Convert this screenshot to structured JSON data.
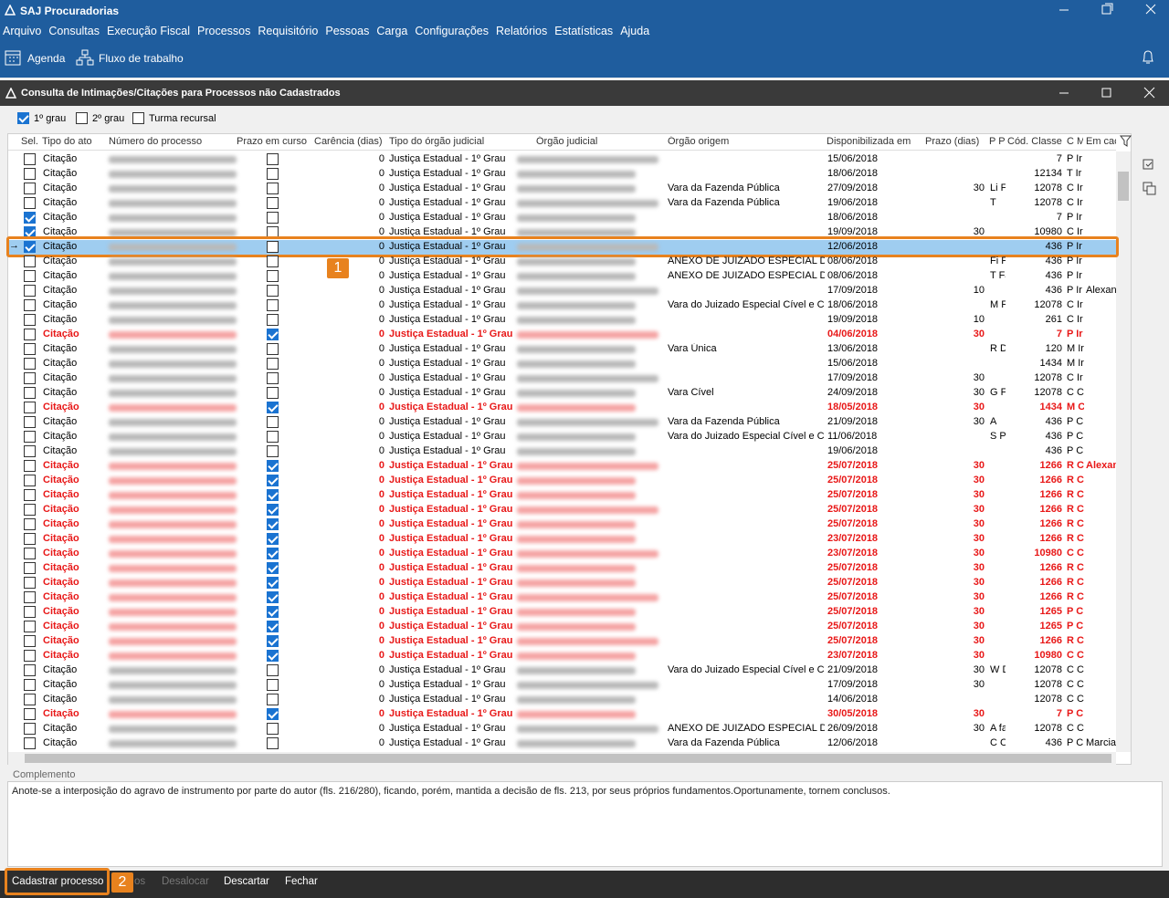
{
  "window": {
    "title": "SAJ Procuradorias"
  },
  "menu": [
    "Arquivo",
    "Consultas",
    "Execução Fiscal",
    "Processos",
    "Requisitório",
    "Pessoas",
    "Carga",
    "Configurações",
    "Relatórios",
    "Estatísticas",
    "Ajuda"
  ],
  "toolbar": [
    "Agenda",
    "Fluxo de trabalho"
  ],
  "dialog": {
    "title": "Consulta de Intimações/Citações para Processos não Cadastrados",
    "filters": [
      {
        "label": "1º grau",
        "checked": true
      },
      {
        "label": "2º grau",
        "checked": false
      },
      {
        "label": "Turma recursal",
        "checked": false
      }
    ],
    "columns": [
      "Sel.",
      "Tipo do ato",
      "Número do processo",
      "Prazo em curso",
      "Carência (dias)",
      "Tipo do órgão judicial",
      "Órgão judicial",
      "Órgão origem",
      "Disponibilizada em",
      "Prazo (dias)",
      "P P",
      "Cód. Classe",
      "C M",
      "Em cac"
    ],
    "rows": [
      {
        "sel": false,
        "tipo": "Citação",
        "prazo_em_curso": false,
        "carencia": 0,
        "tipo_orgao": "Justiça Estadual - 1º Grau",
        "disponibilizada": "15/06/2018",
        "cod_classe": 7,
        "cm": "P Ir"
      },
      {
        "sel": false,
        "tipo": "Citação",
        "prazo_em_curso": false,
        "carencia": 0,
        "tipo_orgao": "Justiça Estadual - 1º Grau",
        "disponibilizada": "18/06/2018",
        "cod_classe": 12134,
        "cm": "T Ir"
      },
      {
        "sel": false,
        "tipo": "Citação",
        "prazo_em_curso": false,
        "carencia": 0,
        "tipo_orgao": "Justiça Estadual - 1º Grau",
        "orgao_origem": "Vara da Fazenda Pública",
        "disponibilizada": "27/09/2018",
        "prazo": 30,
        "pp": "Li Fa",
        "cod_classe": 12078,
        "cm": "C Ir"
      },
      {
        "sel": false,
        "tipo": "Citação",
        "prazo_em_curso": false,
        "carencia": 0,
        "tipo_orgao": "Justiça Estadual - 1º Grau",
        "orgao_origem": "Vara da Fazenda Pública",
        "disponibilizada": "19/06/2018",
        "pp": "T",
        "cod_classe": 12078,
        "cm": "C Ir"
      },
      {
        "sel": true,
        "tipo": "Citação",
        "prazo_em_curso": false,
        "carencia": 0,
        "tipo_orgao": "Justiça Estadual - 1º Grau",
        "disponibilizada": "18/06/2018",
        "cod_classe": 7,
        "cm": "P Ir"
      },
      {
        "sel": true,
        "tipo": "Citação",
        "prazo_em_curso": false,
        "carencia": 0,
        "tipo_orgao": "Justiça Estadual - 1º Grau",
        "disponibilizada": "19/09/2018",
        "prazo": 30,
        "cod_classe": 10980,
        "cm": "C Ir"
      },
      {
        "sel": true,
        "selected": true,
        "tipo": "Citação",
        "prazo_em_curso": false,
        "carencia": 0,
        "tipo_orgao": "Justiça Estadual - 1º Grau",
        "disponibilizada": "12/06/2018",
        "cod_classe": 436,
        "cm": "P Ir"
      },
      {
        "sel": false,
        "tipo": "Citação",
        "prazo_em_curso": false,
        "carencia": 0,
        "tipo_orgao": "Justiça Estadual - 1º Grau",
        "orgao_origem": "ANEXO DE JUIZADO ESPECIAL DA I",
        "disponibilizada": "08/06/2018",
        "pp": "Fi Fa",
        "cod_classe": 436,
        "cm": "P Ir"
      },
      {
        "sel": false,
        "tipo": "Citação",
        "prazo_em_curso": false,
        "carencia": 0,
        "tipo_orgao": "Justiça Estadual - 1º Grau",
        "orgao_origem": "ANEXO DE JUIZADO ESPECIAL DA I",
        "disponibilizada": "08/06/2018",
        "pp": "T Fa",
        "cod_classe": 436,
        "cm": "P Ir"
      },
      {
        "sel": false,
        "tipo": "Citação",
        "prazo_em_curso": false,
        "carencia": 0,
        "tipo_orgao": "Justiça Estadual - 1º Grau",
        "disponibilizada": "17/09/2018",
        "prazo": 10,
        "cod_classe": 436,
        "cm": "P Ir",
        "em_cad": "Alexan"
      },
      {
        "sel": false,
        "tipo": "Citação",
        "prazo_em_curso": false,
        "carencia": 0,
        "tipo_orgao": "Justiça Estadual - 1º Grau",
        "orgao_origem": "Vara do Juizado Especial Cível e C",
        "disponibilizada": "18/06/2018",
        "pp": "M Fa",
        "cod_classe": 12078,
        "cm": "C Ir"
      },
      {
        "sel": false,
        "tipo": "Citação",
        "prazo_em_curso": false,
        "carencia": 0,
        "tipo_orgao": "Justiça Estadual - 1º Grau",
        "disponibilizada": "19/09/2018",
        "prazo": 10,
        "cod_classe": 261,
        "cm": "C Ir"
      },
      {
        "sel": false,
        "alert": true,
        "tipo": "Citação",
        "prazo_em_curso": true,
        "carencia": 0,
        "tipo_orgao": "Justiça Estadual - 1º Grau",
        "disponibilizada": "04/06/2018",
        "prazo": 30,
        "cod_classe": 7,
        "cm": "P Ir"
      },
      {
        "sel": false,
        "tipo": "Citação",
        "prazo_em_curso": false,
        "carencia": 0,
        "tipo_orgao": "Justiça Estadual - 1º Grau",
        "orgao_origem": "Vara Única",
        "disponibilizada": "13/06/2018",
        "pp": "R D",
        "cod_classe": 120,
        "cm": "M Ir"
      },
      {
        "sel": false,
        "tipo": "Citação",
        "prazo_em_curso": false,
        "carencia": 0,
        "tipo_orgao": "Justiça Estadual - 1º Grau",
        "disponibilizada": "15/06/2018",
        "cod_classe": 1434,
        "cm": "M Ir"
      },
      {
        "sel": false,
        "tipo": "Citação",
        "prazo_em_curso": false,
        "carencia": 0,
        "tipo_orgao": "Justiça Estadual - 1º Grau",
        "disponibilizada": "17/09/2018",
        "prazo": 30,
        "cod_classe": 12078,
        "cm": "C Ir"
      },
      {
        "sel": false,
        "tipo": "Citação",
        "prazo_em_curso": false,
        "carencia": 0,
        "tipo_orgao": "Justiça Estadual - 1º Grau",
        "orgao_origem": "Vara Cível",
        "disponibilizada": "24/09/2018",
        "prazo": 30,
        "pp": "G Fa",
        "cod_classe": 12078,
        "cm": "C C"
      },
      {
        "sel": false,
        "alert": true,
        "tipo": "Citação",
        "prazo_em_curso": true,
        "carencia": 0,
        "tipo_orgao": "Justiça Estadual - 1º Grau",
        "disponibilizada": "18/05/2018",
        "prazo": 30,
        "cod_classe": 1434,
        "cm": "M C"
      },
      {
        "sel": false,
        "tipo": "Citação",
        "prazo_em_curso": false,
        "carencia": 0,
        "tipo_orgao": "Justiça Estadual - 1º Grau",
        "orgao_origem": "Vara da Fazenda Pública",
        "disponibilizada": "21/09/2018",
        "prazo": 30,
        "pp": "A",
        "cod_classe": 436,
        "cm": "P C"
      },
      {
        "sel": false,
        "tipo": "Citação",
        "prazo_em_curso": false,
        "carencia": 0,
        "tipo_orgao": "Justiça Estadual - 1º Grau",
        "orgao_origem": "Vara do Juizado Especial Cível e C",
        "disponibilizada": "11/06/2018",
        "pp": "S P",
        "cod_classe": 436,
        "cm": "P C"
      },
      {
        "sel": false,
        "tipo": "Citação",
        "prazo_em_curso": false,
        "carencia": 0,
        "tipo_orgao": "Justiça Estadual - 1º Grau",
        "disponibilizada": "19/06/2018",
        "cod_classe": 436,
        "cm": "P C"
      },
      {
        "sel": false,
        "alert": true,
        "tipo": "Citação",
        "prazo_em_curso": true,
        "carencia": 0,
        "tipo_orgao": "Justiça Estadual - 1º Grau",
        "disponibilizada": "25/07/2018",
        "prazo": 30,
        "cod_classe": 1266,
        "cm": "R C",
        "em_cad": "Alexan"
      },
      {
        "sel": false,
        "alert": true,
        "tipo": "Citação",
        "prazo_em_curso": true,
        "carencia": 0,
        "tipo_orgao": "Justiça Estadual - 1º Grau",
        "disponibilizada": "25/07/2018",
        "prazo": 30,
        "cod_classe": 1266,
        "cm": "R C"
      },
      {
        "sel": false,
        "alert": true,
        "tipo": "Citação",
        "prazo_em_curso": true,
        "carencia": 0,
        "tipo_orgao": "Justiça Estadual - 1º Grau",
        "disponibilizada": "25/07/2018",
        "prazo": 30,
        "cod_classe": 1266,
        "cm": "R C"
      },
      {
        "sel": false,
        "alert": true,
        "tipo": "Citação",
        "prazo_em_curso": true,
        "carencia": 0,
        "tipo_orgao": "Justiça Estadual - 1º Grau",
        "disponibilizada": "25/07/2018",
        "prazo": 30,
        "cod_classe": 1266,
        "cm": "R C"
      },
      {
        "sel": false,
        "alert": true,
        "tipo": "Citação",
        "prazo_em_curso": true,
        "carencia": 0,
        "tipo_orgao": "Justiça Estadual - 1º Grau",
        "disponibilizada": "25/07/2018",
        "prazo": 30,
        "cod_classe": 1266,
        "cm": "R C"
      },
      {
        "sel": false,
        "alert": true,
        "tipo": "Citação",
        "prazo_em_curso": true,
        "carencia": 0,
        "tipo_orgao": "Justiça Estadual - 1º Grau",
        "disponibilizada": "23/07/2018",
        "prazo": 30,
        "cod_classe": 1266,
        "cm": "R C"
      },
      {
        "sel": false,
        "alert": true,
        "tipo": "Citação",
        "prazo_em_curso": true,
        "carencia": 0,
        "tipo_orgao": "Justiça Estadual - 1º Grau",
        "disponibilizada": "23/07/2018",
        "prazo": 30,
        "cod_classe": 10980,
        "cm": "C C"
      },
      {
        "sel": false,
        "alert": true,
        "tipo": "Citação",
        "prazo_em_curso": true,
        "carencia": 0,
        "tipo_orgao": "Justiça Estadual - 1º Grau",
        "disponibilizada": "25/07/2018",
        "prazo": 30,
        "cod_classe": 1266,
        "cm": "R C"
      },
      {
        "sel": false,
        "alert": true,
        "tipo": "Citação",
        "prazo_em_curso": true,
        "carencia": 0,
        "tipo_orgao": "Justiça Estadual - 1º Grau",
        "disponibilizada": "25/07/2018",
        "prazo": 30,
        "cod_classe": 1266,
        "cm": "R C"
      },
      {
        "sel": false,
        "alert": true,
        "tipo": "Citação",
        "prazo_em_curso": true,
        "carencia": 0,
        "tipo_orgao": "Justiça Estadual - 1º Grau",
        "disponibilizada": "25/07/2018",
        "prazo": 30,
        "cod_classe": 1266,
        "cm": "R C"
      },
      {
        "sel": false,
        "alert": true,
        "tipo": "Citação",
        "prazo_em_curso": true,
        "carencia": 0,
        "tipo_orgao": "Justiça Estadual - 1º Grau",
        "disponibilizada": "25/07/2018",
        "prazo": 30,
        "cod_classe": 1265,
        "cm": "P C"
      },
      {
        "sel": false,
        "alert": true,
        "tipo": "Citação",
        "prazo_em_curso": true,
        "carencia": 0,
        "tipo_orgao": "Justiça Estadual - 1º Grau",
        "disponibilizada": "25/07/2018",
        "prazo": 30,
        "cod_classe": 1265,
        "cm": "P C"
      },
      {
        "sel": false,
        "alert": true,
        "tipo": "Citação",
        "prazo_em_curso": true,
        "carencia": 0,
        "tipo_orgao": "Justiça Estadual - 1º Grau",
        "disponibilizada": "25/07/2018",
        "prazo": 30,
        "cod_classe": 1266,
        "cm": "R C"
      },
      {
        "sel": false,
        "alert": true,
        "tipo": "Citação",
        "prazo_em_curso": true,
        "carencia": 0,
        "tipo_orgao": "Justiça Estadual - 1º Grau",
        "disponibilizada": "23/07/2018",
        "prazo": 30,
        "cod_classe": 10980,
        "cm": "C C"
      },
      {
        "sel": false,
        "tipo": "Citação",
        "prazo_em_curso": false,
        "carencia": 0,
        "tipo_orgao": "Justiça Estadual - 1º Grau",
        "orgao_origem": "Vara do Juizado Especial Cível e C",
        "disponibilizada": "21/09/2018",
        "prazo": 30,
        "pp": "W D",
        "cod_classe": 12078,
        "cm": "C C"
      },
      {
        "sel": false,
        "tipo": "Citação",
        "prazo_em_curso": false,
        "carencia": 0,
        "tipo_orgao": "Justiça Estadual - 1º Grau",
        "disponibilizada": "17/09/2018",
        "prazo": 30,
        "cod_classe": 12078,
        "cm": "C C"
      },
      {
        "sel": false,
        "tipo": "Citação",
        "prazo_em_curso": false,
        "carencia": 0,
        "tipo_orgao": "Justiça Estadual - 1º Grau",
        "disponibilizada": "14/06/2018",
        "cod_classe": 12078,
        "cm": "C C"
      },
      {
        "sel": false,
        "alert": true,
        "tipo": "Citação",
        "prazo_em_curso": true,
        "carencia": 0,
        "tipo_orgao": "Justiça Estadual - 1º Grau",
        "disponibilizada": "30/05/2018",
        "prazo": 30,
        "cod_classe": 7,
        "cm": "P C"
      },
      {
        "sel": false,
        "tipo": "Citação",
        "prazo_em_curso": false,
        "carencia": 0,
        "tipo_orgao": "Justiça Estadual - 1º Grau",
        "orgao_origem": "ANEXO DE JUIZADO ESPECIAL DA I",
        "disponibilizada": "26/09/2018",
        "prazo": 30,
        "pp": "A fa",
        "cod_classe": 12078,
        "cm": "C C"
      },
      {
        "sel": false,
        "tipo": "Citação",
        "prazo_em_curso": false,
        "carencia": 0,
        "tipo_orgao": "Justiça Estadual - 1º Grau",
        "orgao_origem": "Vara da Fazenda Pública",
        "disponibilizada": "12/06/2018",
        "pp": "C C",
        "cod_classe": 436,
        "cm": "P C",
        "em_cad": "Marcia"
      }
    ],
    "callouts": [
      "1",
      "2"
    ],
    "complemento": {
      "label": "Complemento",
      "text": "Anote-se a interposição do agravo de instrumento por parte do autor (fls. 216/280), ficando, porém, mantida a decisão de fls. 213, por seus próprios fundamentos.Oportunamente, tornem conclusos."
    },
    "buttons": [
      {
        "label": "Cadastrar processo",
        "enabled": true
      },
      {
        "label": "os",
        "enabled": false
      },
      {
        "label": "Desalocar",
        "enabled": false
      },
      {
        "label": "Descartar",
        "enabled": true
      },
      {
        "label": "Fechar",
        "enabled": true
      }
    ]
  }
}
